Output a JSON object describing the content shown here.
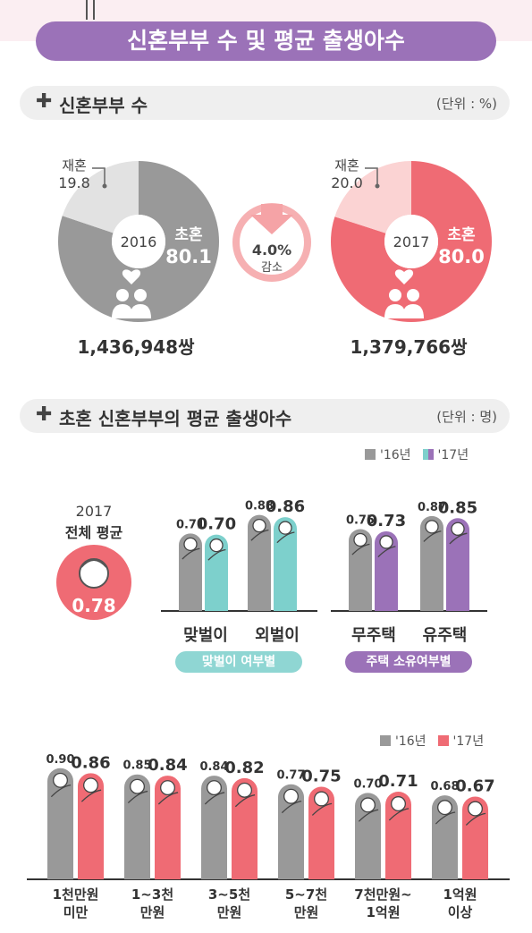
{
  "title": "신혼부부 수 및 평균 출생아수",
  "colors": {
    "purple": "#9b72b8",
    "teal": "#7dd0cc",
    "red": "#ef6b74",
    "gray": "#999999",
    "pink_light": "#fbd3d3",
    "gray_light": "#e2e2e2"
  },
  "section1": {
    "plus": "✚",
    "title": "신혼부부 수",
    "unit": "(단위 : %)",
    "change": {
      "value": "4.0%",
      "label": "감소"
    }
  },
  "section2": {
    "plus": "✚",
    "title": "초혼 신혼부부의 평균 출생아수",
    "unit": "(단위 : 명)"
  },
  "overall": {
    "year": "2017",
    "label": "전체 평균",
    "value": "0.78"
  },
  "legend_top": [
    {
      "label": "'16년",
      "color": "#999999"
    },
    {
      "label": "'17년",
      "color": "#7dd0cc"
    },
    {
      "label": "'17년",
      "color": "#9b72b8"
    }
  ],
  "legend_bottom": [
    {
      "label": "'16년",
      "color": "#999999"
    },
    {
      "label": "'17년",
      "color": "#ef6b74"
    }
  ],
  "group_labels": {
    "dual": "맞벌이 여부별",
    "house": "주택 소유여부별"
  },
  "chart_data": [
    {
      "type": "pie",
      "center_label": "2016",
      "slices": [
        {
          "label": "초혼",
          "value": 80.1,
          "color": "#999999"
        },
        {
          "label": "재혼",
          "value": 19.8,
          "color": "#e2e2e2"
        }
      ],
      "total_label": "1,436,948쌍"
    },
    {
      "type": "pie",
      "center_label": "2017",
      "slices": [
        {
          "label": "초혼",
          "value": 80.0,
          "color": "#ef6b74"
        },
        {
          "label": "재혼",
          "value": 20.0,
          "color": "#fbd3d3"
        }
      ],
      "total_label": "1,379,766쌍"
    },
    {
      "type": "bar",
      "categories": [
        "맞벌이",
        "외벌이"
      ],
      "series": [
        {
          "name": "'16년",
          "values": [
            0.71,
            0.88
          ],
          "color": "#999999"
        },
        {
          "name": "'17년",
          "values": [
            0.7,
            0.86
          ],
          "color": "#7dd0cc"
        }
      ],
      "value_labels": [
        [
          "0.71",
          "0.88"
        ],
        [
          "0.70",
          "0.86"
        ]
      ]
    },
    {
      "type": "bar",
      "categories": [
        "무주택",
        "유주택"
      ],
      "series": [
        {
          "name": "'16년",
          "values": [
            0.75,
            0.87
          ],
          "color": "#999999"
        },
        {
          "name": "'17년",
          "values": [
            0.73,
            0.85
          ],
          "color": "#9b72b8"
        }
      ],
      "value_labels": [
        [
          "0.75",
          "0.87"
        ],
        [
          "0.73",
          "0.85"
        ]
      ]
    },
    {
      "type": "bar",
      "categories": [
        "1천만원\n미만",
        "1~3천\n만원",
        "3~5천\n만원",
        "5~7천\n만원",
        "7천만원~\n1억원",
        "1억원\n이상"
      ],
      "series": [
        {
          "name": "'16년",
          "values": [
            0.9,
            0.85,
            0.84,
            0.77,
            0.7,
            0.68
          ],
          "color": "#999999"
        },
        {
          "name": "'17년",
          "values": [
            0.86,
            0.84,
            0.82,
            0.75,
            0.71,
            0.67
          ],
          "color": "#ef6b74"
        }
      ],
      "value_labels": [
        [
          "0.90",
          "0.85",
          "0.84",
          "0.77",
          "0.70",
          "0.68"
        ],
        [
          "0.86",
          "0.84",
          "0.82",
          "0.75",
          "0.71",
          "0.67"
        ]
      ]
    }
  ]
}
